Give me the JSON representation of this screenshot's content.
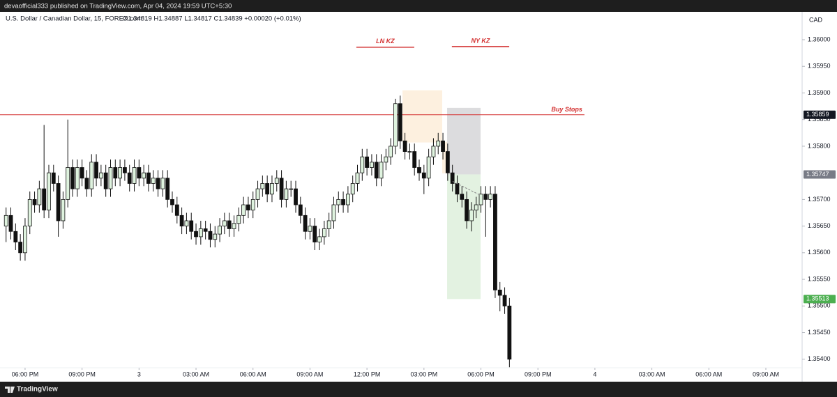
{
  "header": {
    "publisher": "devaofficial333 published on TradingView.com, Apr 04, 2024 19:59 UTC+5:30"
  },
  "footer": {
    "brand": "TradingView"
  },
  "chart_data": {
    "type": "candlestick",
    "symbol": "U.S. Dollar / Canadian Dollar, 15, FOREX.com",
    "ohlc_legend": "O1.34819 H1.34887 L1.34817 C1.34839 +0.00020 (+0.01%)",
    "currency": "CAD",
    "up_color": "#dff3df",
    "down_color": "#111111",
    "wick_color": "#111111",
    "xlim": [
      16.68,
      58.91
    ],
    "ylim": [
      1.35384,
      1.36051
    ],
    "xticks": [
      {
        "value": 18,
        "label": "06:00 PM"
      },
      {
        "value": 21,
        "label": "09:00 PM"
      },
      {
        "value": 24,
        "label": "3"
      },
      {
        "value": 27,
        "label": "03:00 AM"
      },
      {
        "value": 30,
        "label": "06:00 AM"
      },
      {
        "value": 33,
        "label": "09:00 AM"
      },
      {
        "value": 36,
        "label": "12:00 PM"
      },
      {
        "value": 39,
        "label": "03:00 PM"
      },
      {
        "value": 42,
        "label": "06:00 PM"
      },
      {
        "value": 45,
        "label": "09:00 PM"
      },
      {
        "value": 48,
        "label": "4"
      },
      {
        "value": 51,
        "label": "03:00 AM"
      },
      {
        "value": 54,
        "label": "06:00 AM"
      },
      {
        "value": 57,
        "label": "09:00 AM"
      }
    ],
    "yticks": [
      {
        "value": 1.36,
        "label": "1.36000"
      },
      {
        "value": 1.3595,
        "label": "1.35950"
      },
      {
        "value": 1.359,
        "label": "1.35900"
      },
      {
        "value": 1.3585,
        "label": "1.35850"
      },
      {
        "value": 1.358,
        "label": "1.35800"
      },
      {
        "value": 1.357,
        "label": "1.35700"
      },
      {
        "value": 1.3565,
        "label": "1.35650"
      },
      {
        "value": 1.356,
        "label": "1.35600"
      },
      {
        "value": 1.3555,
        "label": "1.35550"
      },
      {
        "value": 1.355,
        "label": "1.35500"
      },
      {
        "value": 1.3545,
        "label": "1.35450"
      },
      {
        "value": 1.354,
        "label": "1.35400"
      }
    ],
    "x": [
      17,
      17.25,
      17.5,
      17.75,
      18,
      18.25,
      18.5,
      18.75,
      19,
      19.25,
      19.5,
      19.75,
      20,
      20.25,
      20.5,
      20.75,
      21,
      21.25,
      21.5,
      21.75,
      22,
      22.25,
      22.5,
      22.75,
      23,
      23.25,
      23.5,
      23.75,
      24,
      24.25,
      24.5,
      24.75,
      25,
      25.25,
      25.5,
      25.75,
      26,
      26.25,
      26.5,
      26.75,
      27,
      27.25,
      27.5,
      27.75,
      28,
      28.25,
      28.5,
      28.75,
      29,
      29.25,
      29.5,
      29.75,
      30,
      30.25,
      30.5,
      30.75,
      31,
      31.25,
      31.5,
      31.75,
      32,
      32.25,
      32.5,
      32.75,
      33,
      33.25,
      33.5,
      33.75,
      34,
      34.25,
      34.5,
      34.75,
      35,
      35.25,
      35.5,
      35.75,
      36,
      36.25,
      36.5,
      36.75,
      37,
      37.25,
      37.5,
      37.75,
      38,
      38.25,
      38.5,
      38.75,
      39,
      39.25,
      39.5,
      39.75,
      40,
      40.25,
      40.5,
      40.75,
      41,
      41.25,
      41.5,
      41.75,
      42,
      42.25,
      42.5,
      42.75,
      43,
      43.25,
      43.5
    ],
    "open": [
      1.3565,
      1.3567,
      1.3564,
      1.3562,
      1.356,
      1.3565,
      1.357,
      1.3569,
      1.3572,
      1.3568,
      1.3575,
      1.3573,
      1.3566,
      1.357,
      1.3576,
      1.3572,
      1.3576,
      1.3574,
      1.3572,
      1.3577,
      1.3574,
      1.3575,
      1.3572,
      1.3576,
      1.3574,
      1.3576,
      1.3575,
      1.3573,
      1.3576,
      1.3574,
      1.3575,
      1.3573,
      1.3574,
      1.3572,
      1.3574,
      1.357,
      1.3569,
      1.3567,
      1.3565,
      1.3566,
      1.3564,
      1.3563,
      1.35645,
      1.3564,
      1.35625,
      1.35635,
      1.3565,
      1.3566,
      1.35645,
      1.35655,
      1.3567,
      1.3569,
      1.3568,
      1.357,
      1.3572,
      1.3573,
      1.3571,
      1.3573,
      1.3574,
      1.357,
      1.3572,
      1.3572,
      1.3569,
      1.3567,
      1.3564,
      1.3565,
      1.3562,
      1.3563,
      1.35645,
      1.3566,
      1.3569,
      1.357,
      1.3569,
      1.3571,
      1.3573,
      1.3575,
      1.3578,
      1.3576,
      1.3577,
      1.3574,
      1.3577,
      1.3578,
      1.358,
      1.3588,
      1.3581,
      1.3579,
      1.3579,
      1.3576,
      1.3575,
      1.3574,
      1.3578,
      1.358,
      1.3581,
      1.3579,
      1.3575,
      1.3573,
      1.3571,
      1.357,
      1.3566,
      1.3568,
      1.3569,
      1.3571,
      1.357,
      1.3571,
      1.3553,
      1.3552,
      1.355
    ],
    "high": [
      1.35685,
      1.35685,
      1.35655,
      1.35635,
      1.35665,
      1.35715,
      1.35715,
      1.35735,
      1.3584,
      1.35765,
      1.35765,
      1.35745,
      1.35715,
      1.3585,
      1.35775,
      1.35775,
      1.35775,
      1.35755,
      1.35785,
      1.35785,
      1.35765,
      1.35765,
      1.35775,
      1.35775,
      1.35775,
      1.35775,
      1.35765,
      1.35775,
      1.35775,
      1.35765,
      1.35765,
      1.35755,
      1.35755,
      1.35755,
      1.35755,
      1.35715,
      1.35705,
      1.35685,
      1.35675,
      1.35675,
      1.35655,
      1.3566,
      1.3566,
      1.35655,
      1.3565,
      1.35665,
      1.35675,
      1.35675,
      1.3567,
      1.35685,
      1.35705,
      1.35705,
      1.35715,
      1.35735,
      1.35745,
      1.35745,
      1.35745,
      1.35755,
      1.35755,
      1.35735,
      1.35735,
      1.35735,
      1.35705,
      1.35685,
      1.35665,
      1.35665,
      1.35645,
      1.3566,
      1.35675,
      1.35705,
      1.35715,
      1.35715,
      1.35725,
      1.35745,
      1.35765,
      1.35795,
      1.35795,
      1.35785,
      1.35785,
      1.35785,
      1.35795,
      1.35815,
      1.35889,
      1.35895,
      1.35825,
      1.35805,
      1.35805,
      1.35775,
      1.35765,
      1.35795,
      1.35815,
      1.35825,
      1.35825,
      1.35805,
      1.35765,
      1.35745,
      1.35725,
      1.35715,
      1.35695,
      1.35705,
      1.35725,
      1.35725,
      1.35725,
      1.35725,
      1.35545,
      1.35535,
      1.35515
    ],
    "low": [
      1.3562,
      1.35625,
      1.35605,
      1.35585,
      1.35585,
      1.35635,
      1.35675,
      1.35675,
      1.35665,
      1.35665,
      1.35715,
      1.3563,
      1.35645,
      1.35685,
      1.35705,
      1.35705,
      1.35725,
      1.35705,
      1.35705,
      1.35725,
      1.35725,
      1.35705,
      1.35705,
      1.35725,
      1.35725,
      1.35735,
      1.35715,
      1.35715,
      1.35725,
      1.35725,
      1.35715,
      1.35715,
      1.35705,
      1.35705,
      1.35685,
      1.35675,
      1.35655,
      1.35635,
      1.35635,
      1.35625,
      1.35615,
      1.35615,
      1.35625,
      1.3561,
      1.3561,
      1.3562,
      1.35635,
      1.3563,
      1.3563,
      1.3564,
      1.35655,
      1.35665,
      1.35665,
      1.35685,
      1.35705,
      1.35695,
      1.35695,
      1.35715,
      1.35685,
      1.35685,
      1.35705,
      1.35675,
      1.35655,
      1.35625,
      1.35625,
      1.35605,
      1.35605,
      1.35615,
      1.3563,
      1.35645,
      1.35675,
      1.35675,
      1.35675,
      1.35695,
      1.35715,
      1.35735,
      1.35745,
      1.35745,
      1.35725,
      1.35725,
      1.35755,
      1.35765,
      1.35785,
      1.35795,
      1.35775,
      1.35775,
      1.35745,
      1.35735,
      1.3571,
      1.35725,
      1.35765,
      1.35785,
      1.35775,
      1.35735,
      1.35715,
      1.35695,
      1.35685,
      1.35645,
      1.3564,
      1.35665,
      1.35675,
      1.3563,
      1.35685,
      1.35515,
      1.3549,
      1.35485,
      1.35385
    ],
    "close": [
      1.3567,
      1.3564,
      1.3562,
      1.356,
      1.3565,
      1.357,
      1.3569,
      1.3572,
      1.3568,
      1.3575,
      1.3573,
      1.3566,
      1.357,
      1.3576,
      1.3572,
      1.3576,
      1.3574,
      1.3572,
      1.3577,
      1.3574,
      1.3575,
      1.3572,
      1.3576,
      1.3574,
      1.3576,
      1.3575,
      1.3573,
      1.3576,
      1.3574,
      1.3575,
      1.3573,
      1.3574,
      1.3572,
      1.3574,
      1.357,
      1.3569,
      1.3567,
      1.3565,
      1.3566,
      1.3564,
      1.3563,
      1.35645,
      1.3564,
      1.35625,
      1.35635,
      1.3565,
      1.3566,
      1.35645,
      1.35655,
      1.3567,
      1.3569,
      1.3568,
      1.357,
      1.3572,
      1.3573,
      1.3571,
      1.3573,
      1.3574,
      1.357,
      1.3572,
      1.3572,
      1.3569,
      1.3567,
      1.3564,
      1.3565,
      1.3562,
      1.3563,
      1.35645,
      1.3566,
      1.3569,
      1.357,
      1.3569,
      1.3571,
      1.3573,
      1.3575,
      1.3578,
      1.3576,
      1.3577,
      1.3574,
      1.3577,
      1.3578,
      1.358,
      1.3588,
      1.3581,
      1.3579,
      1.3579,
      1.3576,
      1.3575,
      1.3574,
      1.3578,
      1.358,
      1.3581,
      1.3579,
      1.3575,
      1.3573,
      1.3571,
      1.357,
      1.3566,
      1.3568,
      1.3569,
      1.3571,
      1.357,
      1.3571,
      1.3553,
      1.3552,
      1.355,
      1.354
    ],
    "zones": [
      {
        "x": [
          37.87,
          39.96
        ],
        "y": [
          1.35807,
          1.35905
        ],
        "color": "#fdf0df"
      },
      {
        "x": [
          39.96,
          40.7
        ],
        "y": [
          1.35749,
          1.35808
        ],
        "color": "#fdf0df"
      }
    ],
    "position": {
      "x": [
        40.22,
        41.98
      ],
      "stop": 1.35872,
      "entry": 1.35747,
      "target": 1.35513,
      "stop_color": "#dcdcde",
      "target_color": "#e3f2e1"
    },
    "kill_zones": [
      {
        "label": "LN KZ",
        "price": 1.35986,
        "x": [
          35.44,
          38.49
        ]
      },
      {
        "label": "NY KZ",
        "price": 1.35987,
        "x": [
          40.47,
          43.49
        ]
      }
    ],
    "buy_stops": {
      "label": "Buy Stops",
      "price": 1.35859,
      "x_end": 47.45
    },
    "annotation_color": "#d32f2f",
    "price_labels": [
      {
        "value": 1.35859,
        "color": "#131722"
      },
      {
        "value": 1.35747,
        "color": "#787b86"
      },
      {
        "value": 1.35513,
        "color": "#4caf50"
      }
    ]
  }
}
